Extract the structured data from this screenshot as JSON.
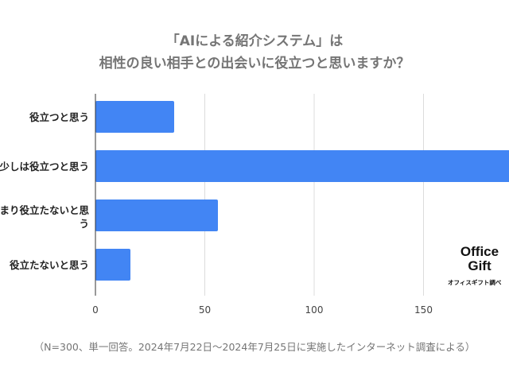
{
  "chart_data": {
    "type": "bar",
    "orientation": "horizontal",
    "title": [
      "「AIによる紹介システム」は",
      "相性の良い相手との出会いに役立つと思いますか？"
    ],
    "categories": [
      "役立つと思う",
      "少しは役立つと思う",
      "あまり役立たないと思う",
      "役立たないと思う"
    ],
    "values": [
      36,
      192,
      56,
      16
    ],
    "xlim": [
      0,
      200
    ],
    "xticks": [
      0,
      50,
      100,
      150
    ],
    "grid": true,
    "bar_color": "#4285f4",
    "note": "（N=300、単一回答。2024年7月22日〜2024年7月25日に実施したインターネット調査による）"
  },
  "logo": {
    "line1": "Office",
    "line2": "Gift",
    "sub": "オフィスギフト調べ"
  }
}
